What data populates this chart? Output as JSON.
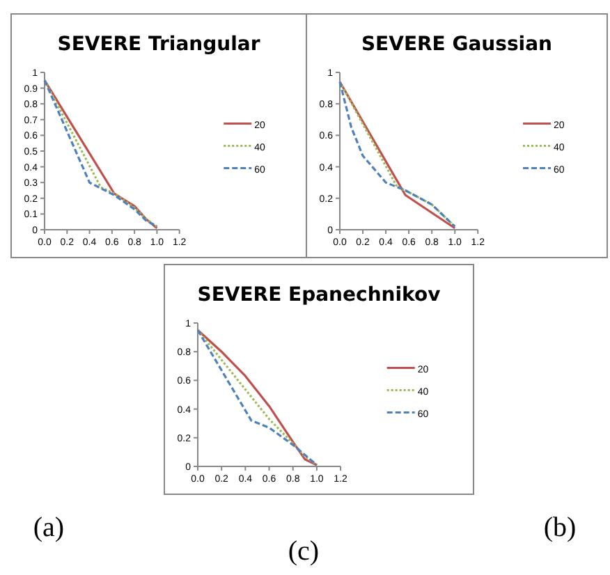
{
  "chart_data": [
    {
      "type": "line",
      "title": "SEVERE   Triangular",
      "xlim": [
        0,
        1.2
      ],
      "ylim": [
        0,
        1
      ],
      "xticks": [
        {
          "value": 0,
          "label": "0.0"
        },
        {
          "value": 0.2,
          "label": "0.2"
        },
        {
          "value": 0.4,
          "label": "0.4"
        },
        {
          "value": 0.6,
          "label": "0.6"
        },
        {
          "value": 0.8,
          "label": "0.8"
        },
        {
          "value": 1,
          "label": "1.0"
        },
        {
          "value": 1.2,
          "label": "1.2"
        }
      ],
      "yticks": [
        0,
        0.1,
        0.2,
        0.3,
        0.4,
        0.5,
        0.6,
        0.7,
        0.8,
        0.9,
        1
      ],
      "legend": "right",
      "grid": false,
      "annotations": [
        "(a)"
      ],
      "series": [
        {
          "name": "20",
          "color": "#c0504d",
          "line_style": "solid",
          "x": [
            0,
            0.62,
            0.8,
            0.9,
            1.0
          ],
          "values": [
            0.95,
            0.23,
            0.15,
            0.07,
            0.01
          ]
        },
        {
          "name": "40",
          "color": "#9bbb59",
          "line_style": "dotted",
          "x": [
            0,
            0.5,
            0.62,
            0.8,
            0.9,
            1.0
          ],
          "values": [
            0.95,
            0.27,
            0.23,
            0.14,
            0.07,
            0.02
          ]
        },
        {
          "name": "60",
          "color": "#4f81bd",
          "line_style": "dashed",
          "x": [
            0,
            0.4,
            0.62,
            0.8,
            0.9,
            1.0
          ],
          "values": [
            0.95,
            0.3,
            0.22,
            0.13,
            0.06,
            0.02
          ]
        }
      ]
    },
    {
      "type": "line",
      "title": "SEVERE   Gaussian",
      "xlim": [
        0,
        1.2
      ],
      "ylim": [
        0,
        1
      ],
      "xticks": [
        {
          "value": 0,
          "label": "0.0"
        },
        {
          "value": 0.2,
          "label": "0.2"
        },
        {
          "value": 0.4,
          "label": "0.4"
        },
        {
          "value": 0.6,
          "label": "0.6"
        },
        {
          "value": 0.8,
          "label": "0.8"
        },
        {
          "value": 1,
          "label": "1.0"
        },
        {
          "value": 1.2,
          "label": "1.2"
        }
      ],
      "yticks": [
        0,
        0.2,
        0.4,
        0.6,
        0.8,
        1
      ],
      "legend": "right",
      "grid": false,
      "annotations": [
        "(b)"
      ],
      "series": [
        {
          "name": "20",
          "color": "#c0504d",
          "line_style": "solid",
          "x": [
            0,
            0.57,
            1.0
          ],
          "values": [
            0.94,
            0.22,
            0.01
          ]
        },
        {
          "name": "40",
          "color": "#9bbb59",
          "line_style": "dotted",
          "x": [
            0,
            0.5,
            0.57,
            0.8,
            1.0
          ],
          "values": [
            0.94,
            0.27,
            0.25,
            0.16,
            0.02
          ]
        },
        {
          "name": "60",
          "color": "#4f81bd",
          "line_style": "dashed",
          "x": [
            0,
            0.1,
            0.2,
            0.4,
            0.57,
            0.8,
            1.0
          ],
          "values": [
            0.94,
            0.65,
            0.47,
            0.3,
            0.25,
            0.16,
            0.02
          ]
        }
      ]
    },
    {
      "type": "line",
      "title": "SEVERE   Epanechnikov",
      "xlim": [
        0,
        1.2
      ],
      "ylim": [
        0,
        1
      ],
      "xticks": [
        {
          "value": 0,
          "label": "0.0"
        },
        {
          "value": 0.2,
          "label": "0.2"
        },
        {
          "value": 0.4,
          "label": "0.4"
        },
        {
          "value": 0.6,
          "label": "0.6"
        },
        {
          "value": 0.8,
          "label": "0.8"
        },
        {
          "value": 1,
          "label": "1.0"
        },
        {
          "value": 1.2,
          "label": "1.2"
        }
      ],
      "yticks": [
        0,
        0.2,
        0.4,
        0.6,
        0.8,
        1
      ],
      "legend": "right",
      "grid": false,
      "annotations": [
        "(c)"
      ],
      "series": [
        {
          "name": "20",
          "color": "#c0504d",
          "line_style": "solid",
          "x": [
            0,
            0.2,
            0.4,
            0.6,
            0.8,
            0.9,
            1.0
          ],
          "values": [
            0.95,
            0.8,
            0.63,
            0.42,
            0.17,
            0.05,
            0.01
          ]
        },
        {
          "name": "40",
          "color": "#9bbb59",
          "line_style": "dotted",
          "x": [
            0,
            0.6,
            0.8,
            0.9,
            1.0
          ],
          "values": [
            0.95,
            0.33,
            0.16,
            0.07,
            0.01
          ]
        },
        {
          "name": "60",
          "color": "#4f81bd",
          "line_style": "dashed",
          "x": [
            0,
            0.45,
            0.6,
            0.8,
            0.9,
            1.0
          ],
          "values": [
            0.95,
            0.32,
            0.27,
            0.15,
            0.08,
            0.01
          ]
        }
      ]
    }
  ]
}
